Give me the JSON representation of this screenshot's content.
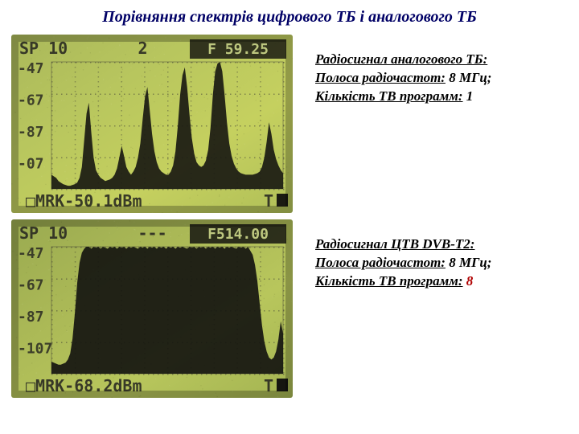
{
  "title": "Порівняння спектрів цифрового ТБ і аналогового ТБ",
  "analog": {
    "heading": "Радіосигнал аналогового ТБ:",
    "band_label": "Полоса радіочастот:",
    "band_value": "8 МГц;",
    "count_label": "Кількість ТВ программ:",
    "count_value": "1",
    "screen": {
      "top_left": "SP 10",
      "top_mid": "2",
      "top_freq": "F 59.25",
      "y_labels": [
        "-47",
        "-67",
        "-87",
        "-07"
      ],
      "bottom": "MRK-50.1dBm",
      "bottom_right": "T",
      "bg_gradient": [
        "#aab85a",
        "#b8c65e",
        "#c5d05f",
        "#b0bf58"
      ],
      "trace_color": "#1a1a12",
      "grid_color": "#4a4a38",
      "spectrum": [
        18,
        16,
        14,
        10,
        8,
        6,
        5,
        4,
        4,
        5,
        6,
        8,
        14,
        28,
        62,
        96,
        110,
        72,
        40,
        24,
        18,
        14,
        12,
        10,
        11,
        12,
        14,
        18,
        26,
        40,
        55,
        42,
        28,
        22,
        18,
        22,
        28,
        40,
        58,
        90,
        118,
        130,
        100,
        70,
        48,
        34,
        26,
        22,
        20,
        18,
        18,
        22,
        30,
        48,
        80,
        120,
        145,
        155,
        130,
        95,
        65,
        45,
        34,
        30,
        28,
        30,
        36,
        50,
        78,
        120,
        150,
        160,
        162,
        150,
        120,
        85,
        58,
        42,
        32,
        26,
        22,
        20,
        19,
        18,
        18,
        18,
        18,
        19,
        20,
        22,
        28,
        40,
        60,
        85,
        70,
        50,
        38,
        30,
        24,
        20
      ]
    }
  },
  "digital": {
    "heading": "Радіосигнал ЦТВ DVB-T2:",
    "band_label": "Полоса радіочастот:",
    "band_value": "8 МГц;",
    "count_label": "Кількість ТВ программ:",
    "count_value": "8",
    "screen": {
      "top_left": "SP 10",
      "top_mid": "---",
      "top_freq": "F514.00",
      "y_labels": [
        "-47",
        "-67",
        "-87",
        "-107"
      ],
      "bottom": "MRK-68.2dBm",
      "bottom_right": "T",
      "bg_gradient": [
        "#9aaa50",
        "#aab856",
        "#b8c65c",
        "#a4b452"
      ],
      "trace_color": "#151510",
      "grid_color": "#454534",
      "spectrum": [
        12,
        11,
        10,
        9,
        9,
        10,
        11,
        14,
        20,
        35,
        60,
        90,
        110,
        120,
        124,
        126,
        126,
        124,
        126,
        125,
        126,
        124,
        126,
        125,
        124,
        126,
        125,
        126,
        124,
        126,
        125,
        126,
        124,
        126,
        125,
        126,
        125,
        124,
        126,
        125,
        126,
        124,
        126,
        125,
        126,
        124,
        126,
        125,
        126,
        124,
        126,
        125,
        126,
        124,
        126,
        125,
        126,
        125,
        124,
        126,
        125,
        126,
        124,
        126,
        125,
        126,
        124,
        126,
        125,
        126,
        124,
        126,
        125,
        126,
        124,
        126,
        125,
        126,
        125,
        124,
        126,
        125,
        126,
        124,
        126,
        122,
        118,
        108,
        92,
        70,
        48,
        32,
        22,
        16,
        14,
        16,
        22,
        34,
        52,
        40
      ]
    }
  }
}
